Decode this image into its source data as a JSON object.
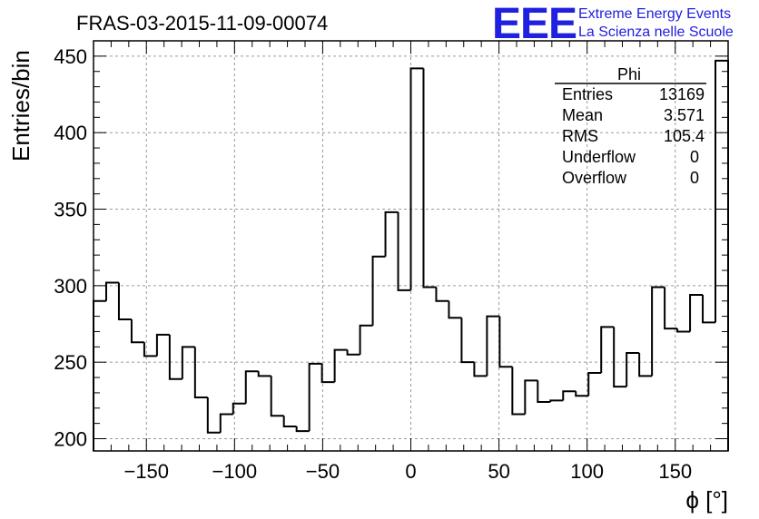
{
  "chart_data": {
    "type": "bar",
    "title": "FRAS-03-2015-11-09-00074",
    "xlabel": "ϕ [°]",
    "ylabel": "Entries/bin",
    "xlim": [
      -180,
      180
    ],
    "ylim": [
      192,
      460
    ],
    "bin_width": 7.2,
    "x_ticks": [
      -150,
      -100,
      -50,
      0,
      50,
      100,
      150
    ],
    "y_ticks": [
      200,
      250,
      300,
      350,
      400,
      450
    ],
    "grid": true,
    "values": [
      290,
      302,
      278,
      263,
      254,
      268,
      239,
      260,
      227,
      204,
      216,
      223,
      244,
      241,
      215,
      208,
      205,
      249,
      237,
      258,
      255,
      274,
      319,
      348,
      297,
      442,
      299,
      290,
      279,
      250,
      241,
      280,
      247,
      216,
      238,
      224,
      225,
      231,
      228,
      243,
      273,
      234,
      256,
      241,
      299,
      272,
      270,
      294,
      276,
      447
    ],
    "stats": {
      "name": "Phi",
      "rows": [
        {
          "label": "Entries",
          "value": "13169"
        },
        {
          "label": "Mean",
          "value": "3.571"
        },
        {
          "label": "RMS",
          "value": "105.4"
        },
        {
          "label": "Underflow",
          "value": "0"
        },
        {
          "label": "Overflow",
          "value": "0"
        }
      ]
    }
  },
  "logo": {
    "text": "EEE",
    "line1": "Extreme Energy Events",
    "line2": "La Scienza nelle Scuole",
    "color": "#2020e0"
  }
}
